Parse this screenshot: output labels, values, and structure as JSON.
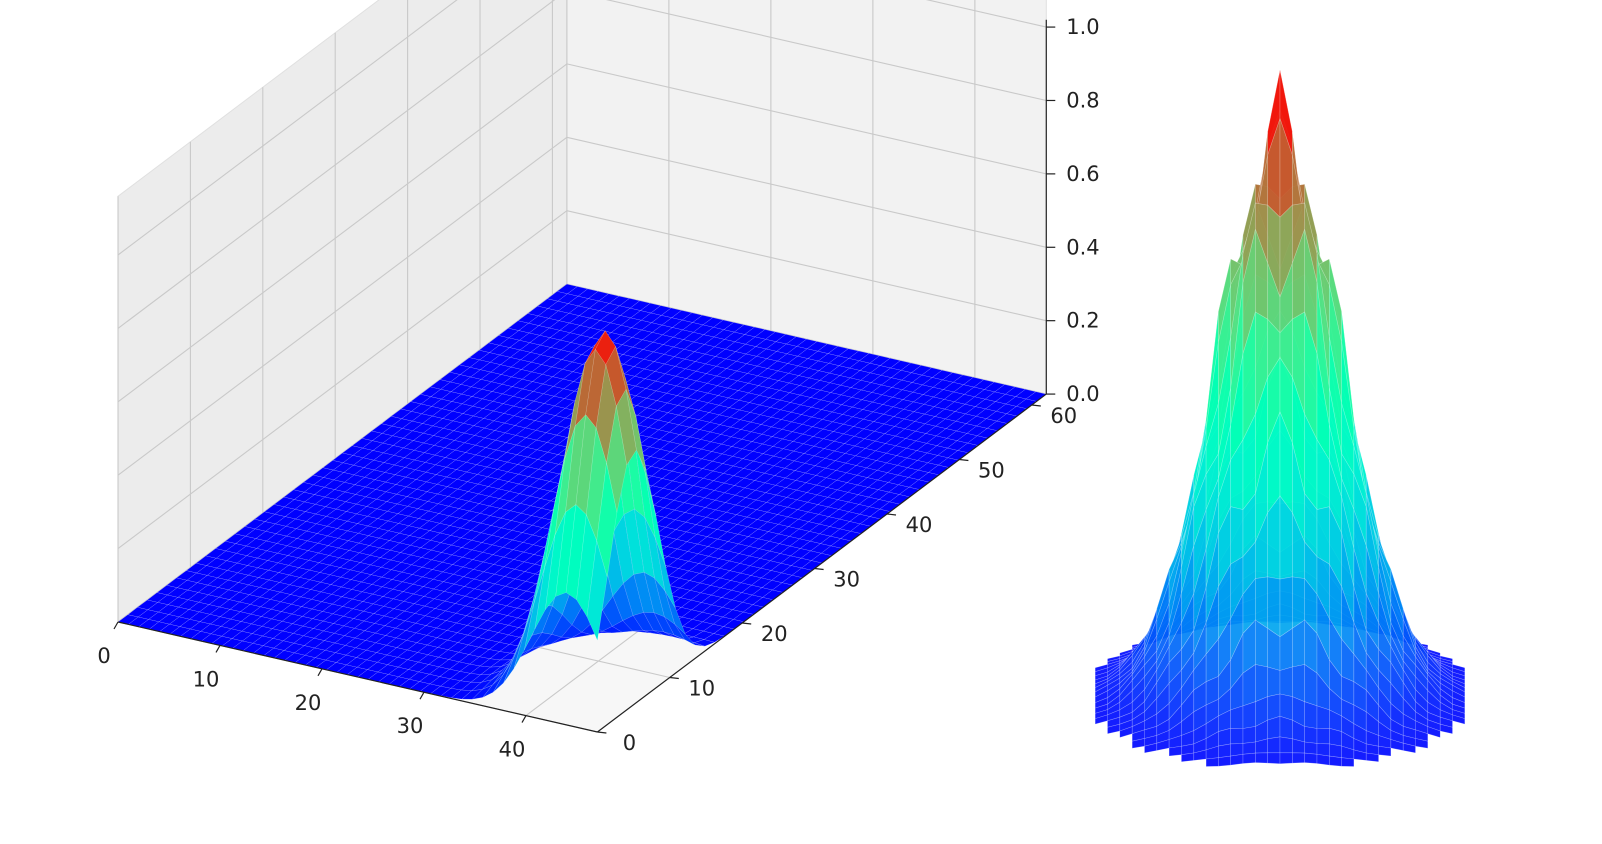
{
  "chart_data": [
    {
      "type": "surface3d",
      "title": "",
      "xlabel": "",
      "ylabel": "",
      "zlabel": "",
      "colormap": "rainbow",
      "grid": true,
      "x_ticks": [
        0,
        10,
        20,
        30,
        40
      ],
      "x_tick_labels": [
        "0",
        "10",
        "20",
        "30",
        "40"
      ],
      "y_ticks": [
        0,
        10,
        20,
        30,
        40,
        50,
        60
      ],
      "y_tick_labels": [
        "0",
        "10",
        "20",
        "30",
        "40",
        "50",
        "60"
      ],
      "z_ticks": [
        0.0,
        0.2,
        0.4,
        0.6,
        0.8,
        1.0
      ],
      "z_tick_labels": [
        "0.0",
        "0.2",
        "0.4",
        "0.6",
        "0.8",
        "1.0"
      ],
      "xlim": [
        0,
        47
      ],
      "ylim": [
        0,
        62
      ],
      "zlim": [
        0,
        1.0
      ],
      "peak": {
        "x": 44,
        "y": 5,
        "z": 1.0,
        "sigma": 3.5
      }
    },
    {
      "type": "surface3d",
      "title": "",
      "axes_visible": false,
      "colormap": "rainbow",
      "peak": {
        "z": 1.0
      }
    }
  ]
}
